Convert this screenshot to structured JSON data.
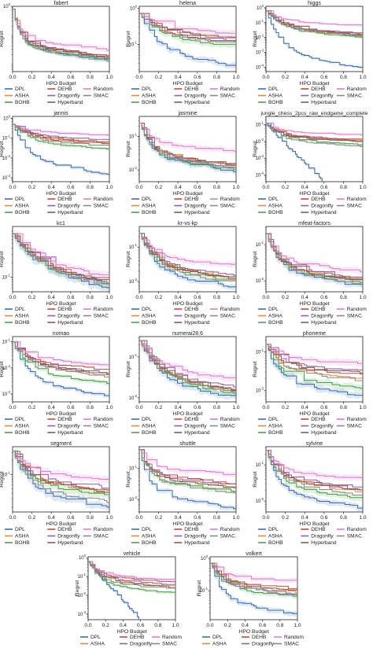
{
  "figure": {
    "colors": {
      "DPL": "#3a6fb5",
      "ASHA": "#e08a3c",
      "BOHB": "#4aa34a",
      "DEHB": "#d2453b",
      "Dragonfly": "#8a5fb0",
      "Hyperband": "#8c5a48",
      "Random": "#e07ccd",
      "SMAC": "#8a8a8a"
    },
    "legend_layout": [
      [
        "DPL",
        "DEHB",
        "Random"
      ],
      [
        "ASHA",
        "Dragonfly",
        "SMAC"
      ],
      [
        "BOHB",
        "Hyperband"
      ]
    ]
  },
  "chart_data": [
    {
      "title": "fabert",
      "type": "line",
      "xlabel": "HPO Budget",
      "ylabel": "Regret",
      "yscale": "log",
      "ylim_exp": [
        -2.3,
        0
      ],
      "ytick_exps": [
        0
      ],
      "xticks": [
        "0.0",
        "0.2",
        "0.4",
        "0.6",
        "0.8",
        "1.0"
      ],
      "final": {
        "DPL": -1.92,
        "ASHA": -1.85,
        "BOHB": -1.9,
        "DEHB": -1.78,
        "Dragonfly": -1.83,
        "Hyperband": -1.8,
        "Random": -1.55,
        "SMAC": -1.95
      },
      "start": -0.1,
      "drop": 0.13
    },
    {
      "title": "helena",
      "type": "line",
      "xlabel": "HPO Budget",
      "ylabel": "Regret",
      "yscale": "log",
      "ylim_exp": [
        -1.75,
        0.05
      ],
      "ytick_exps": [
        0,
        -1
      ],
      "xticks": [
        "0.0",
        "0.2",
        "0.4",
        "0.6",
        "0.8",
        "1.0"
      ],
      "final": {
        "DPL": -1.62,
        "ASHA": -0.85,
        "BOHB": -1.05,
        "DEHB": -0.95,
        "Dragonfly": -0.9,
        "Hyperband": -0.82,
        "Random": -0.7,
        "SMAC": -0.98
      },
      "start": -0.15,
      "drop": 0.3
    },
    {
      "title": "higgs",
      "type": "line",
      "xlabel": "HPO Budget",
      "ylabel": "Regret",
      "yscale": "log",
      "ylim_exp": [
        -4.3,
        0.1
      ],
      "ytick_exps": [
        0,
        -1,
        -2,
        -3,
        -4
      ],
      "xticks": [
        "0.0",
        "0.2",
        "0.4",
        "0.6",
        "0.8",
        "1.0"
      ],
      "final": {
        "DPL": -4.1,
        "ASHA": -1.95,
        "BOHB": -2.0,
        "DEHB": -1.75,
        "Dragonfly": -1.8,
        "Hyperband": -1.85,
        "Random": -1.2,
        "SMAC": -1.9
      },
      "start": -0.2,
      "drop": 0.25
    },
    {
      "title": "jannis",
      "type": "line",
      "xlabel": "HPO Budget",
      "ylabel": "Regret",
      "yscale": "log",
      "ylim_exp": [
        -3.2,
        0.1
      ],
      "ytick_exps": [
        0,
        -1,
        -2,
        -3
      ],
      "xticks": [
        "0.0",
        "0.2",
        "0.4",
        "0.6",
        "0.8",
        "1.0"
      ],
      "final": {
        "DPL": -2.85,
        "ASHA": -1.25,
        "BOHB": -1.55,
        "DEHB": -1.3,
        "Dragonfly": -1.1,
        "Hyperband": -1.2,
        "Random": -0.85,
        "SMAC": -1.4
      },
      "start": -0.3,
      "drop": 0.25
    },
    {
      "title": "jasmine",
      "type": "line",
      "xlabel": "HPO Budget",
      "ylabel": "Regret",
      "yscale": "log",
      "ylim_exp": [
        -2.35,
        -0.4
      ],
      "ytick_exps": [
        -1,
        -2
      ],
      "xticks": [
        "0.0",
        "0.2",
        "0.4",
        "0.6",
        "0.8",
        "1.0"
      ],
      "final": {
        "DPL": -2.05,
        "ASHA": -1.9,
        "BOHB": -2.0,
        "DEHB": -1.88,
        "Dragonfly": -1.95,
        "Hyperband": -1.85,
        "Random": -1.45,
        "SMAC": -1.92
      },
      "start": -0.6,
      "drop": 0.2
    },
    {
      "title": "jungle_chess_2pcs_raw_endgame_complete",
      "type": "line",
      "xlabel": "HPO Budget",
      "ylabel": "Regret",
      "yscale": "log",
      "ylim_exp": [
        -4.4,
        -0.5
      ],
      "ytick_exps": [
        -1,
        -2,
        -3,
        -4
      ],
      "xticks": [
        "0.0",
        "0.2",
        "0.4",
        "0.6",
        "0.8",
        "1.0"
      ],
      "final": {
        "DPL": -4.3,
        "ASHA": -1.95,
        "BOHB": -2.2,
        "DEHB": -1.9,
        "Dragonfly": -2.0,
        "Hyperband": -2.05,
        "Random": -1.6,
        "SMAC": -2.3
      },
      "start": -0.9,
      "drop": 0.2,
      "dpl_end": 0.58
    },
    {
      "title": "kc1",
      "type": "line",
      "xlabel": "HPO Budget",
      "ylabel": "Regret",
      "yscale": "log",
      "ylim_exp": [
        -1.3,
        0.05
      ],
      "ytick_exps": [
        -1
      ],
      "xticks": [
        "0.0",
        "0.2",
        "0.4",
        "0.6",
        "0.8",
        "1.0"
      ],
      "final": {
        "DPL": -1.25,
        "ASHA": -1.15,
        "BOHB": -1.18,
        "DEHB": -1.12,
        "Dragonfly": -1.14,
        "Hyperband": -1.1,
        "Random": -1.0,
        "SMAC": -1.2
      },
      "start": -0.1,
      "drop": 0.45
    },
    {
      "title": "kr-vs-kp",
      "type": "line",
      "xlabel": "HPO Budget",
      "ylabel": "Regret",
      "yscale": "log",
      "ylim_exp": [
        -2.3,
        -0.4
      ],
      "ytick_exps": [
        -1,
        -2
      ],
      "xticks": [
        "0.0",
        "0.2",
        "0.4",
        "0.6",
        "0.8",
        "1.0"
      ],
      "final": {
        "DPL": -2.2,
        "ASHA": -1.9,
        "BOHB": -2.0,
        "DEHB": -1.95,
        "Dragonfly": -1.85,
        "Hyperband": -1.92,
        "Random": -1.55,
        "SMAC": -2.05
      },
      "start": -0.6,
      "drop": 0.25
    },
    {
      "title": "mfeat-factors",
      "type": "line",
      "xlabel": "HPO Budget",
      "ylabel": "Regret",
      "yscale": "log",
      "ylim_exp": [
        -2.3,
        -0.5
      ],
      "ytick_exps": [
        -1,
        -2
      ],
      "xticks": [
        "0.0",
        "0.2",
        "0.4",
        "0.6",
        "0.8",
        "1.0"
      ],
      "final": {
        "DPL": -2.15,
        "ASHA": -2.0,
        "BOHB": -2.05,
        "DEHB": -1.98,
        "Dragonfly": -1.95,
        "Hyperband": -2.02,
        "Random": -1.75,
        "SMAC": -2.1
      },
      "start": -0.7,
      "drop": 0.2
    },
    {
      "title": "nomao",
      "type": "line",
      "xlabel": "HPO Budget",
      "ylabel": "Regret",
      "yscale": "log",
      "ylim_exp": [
        -3.3,
        -0.8
      ],
      "ytick_exps": [
        -1,
        -2,
        -3
      ],
      "xticks": [
        "0.0",
        "0.2",
        "0.4",
        "0.6",
        "0.8",
        "1.0"
      ],
      "final": {
        "DPL": -3.1,
        "ASHA": -2.3,
        "BOHB": -2.6,
        "DEHB": -2.1,
        "Dragonfly": -2.2,
        "Hyperband": -2.25,
        "Random": -1.9,
        "SMAC": -2.35
      },
      "start": -1.0,
      "drop": 0.25
    },
    {
      "title": "numerai28.6",
      "type": "line",
      "xlabel": "HPO Budget",
      "ylabel": "Regret",
      "yscale": "log",
      "ylim_exp": [
        -2.1,
        -0.5
      ],
      "ytick_exps": [
        -1,
        -2
      ],
      "xticks": [
        "0.0",
        "0.2",
        "0.4",
        "0.6",
        "0.8",
        "1.0"
      ],
      "final": {
        "DPL": -2.0,
        "ASHA": -1.85,
        "BOHB": -1.9,
        "DEHB": -1.8,
        "Dragonfly": -1.75,
        "Hyperband": -1.82,
        "Random": -1.55,
        "SMAC": -1.88
      },
      "start": -0.6,
      "drop": 0.3
    },
    {
      "title": "phoneme",
      "type": "line",
      "xlabel": "HPO Budget",
      "ylabel": "Regret",
      "yscale": "log",
      "ylim_exp": [
        -2.3,
        -0.6
      ],
      "ytick_exps": [
        -1,
        -2
      ],
      "xticks": [
        "0.0",
        "0.2",
        "0.4",
        "0.6",
        "0.8",
        "1.0"
      ],
      "final": {
        "DPL": -2.15,
        "ASHA": -1.7,
        "BOHB": -1.95,
        "DEHB": -1.6,
        "Dragonfly": -1.5,
        "Hyperband": -1.55,
        "Random": -1.3,
        "SMAC": -1.75
      },
      "start": -0.8,
      "drop": 0.2
    },
    {
      "title": "segment",
      "type": "line",
      "xlabel": "HPO Budget",
      "ylabel": "Regret",
      "yscale": "log",
      "ylim_exp": [
        -1.8,
        -0.4
      ],
      "ytick_exps": [
        -1
      ],
      "xticks": [
        "0.0",
        "0.2",
        "0.4",
        "0.6",
        "0.8",
        "1.0"
      ],
      "final": {
        "DPL": -1.7,
        "ASHA": -1.4,
        "BOHB": -1.45,
        "DEHB": -1.35,
        "Dragonfly": -1.3,
        "Hyperband": -1.38,
        "Random": -1.1,
        "SMAC": -1.6
      },
      "start": -0.5,
      "drop": 0.25
    },
    {
      "title": "shuttle",
      "type": "line",
      "xlabel": "HPO Budget",
      "ylabel": "Regret",
      "yscale": "log",
      "ylim_exp": [
        -2.4,
        -0.3
      ],
      "ytick_exps": [
        -1,
        -2
      ],
      "xticks": [
        "0.0",
        "0.2",
        "0.4",
        "0.6",
        "0.8",
        "1.0"
      ],
      "final": {
        "DPL": -2.3,
        "ASHA": -1.6,
        "BOHB": -1.75,
        "DEHB": -1.5,
        "Dragonfly": -1.55,
        "Hyperband": -1.65,
        "Random": -1.2,
        "SMAC": -1.8
      },
      "start": -0.4,
      "drop": 0.15
    },
    {
      "title": "sylvine",
      "type": "line",
      "xlabel": "HPO Budget",
      "ylabel": "Regret",
      "yscale": "log",
      "ylim_exp": [
        -2.3,
        -0.5
      ],
      "ytick_exps": [
        -1,
        -2
      ],
      "xticks": [
        "0.0",
        "0.2",
        "0.4",
        "0.6",
        "0.8",
        "1.0"
      ],
      "final": {
        "DPL": -2.2,
        "ASHA": -1.75,
        "BOHB": -1.95,
        "DEHB": -1.7,
        "Dragonfly": -1.65,
        "Hyperband": -1.72,
        "Random": -1.4,
        "SMAC": -1.85
      },
      "start": -0.6,
      "drop": 0.2
    },
    {
      "title": "vehicle",
      "type": "line",
      "xlabel": "HPO Budget",
      "ylabel": "Regret",
      "yscale": "log",
      "ylim_exp": [
        -3.3,
        0.05
      ],
      "ytick_exps": [
        0,
        -1,
        -2,
        -3
      ],
      "xticks": [
        "0.0",
        "0.2",
        "0.4",
        "0.6",
        "0.8",
        "1.0"
      ],
      "final": {
        "DPL": -3.2,
        "ASHA": -1.55,
        "BOHB": -1.9,
        "DEHB": -1.3,
        "Dragonfly": -1.45,
        "Hyperband": -1.6,
        "Random": -1.2,
        "SMAC": -1.7
      },
      "start": -0.2,
      "drop": 0.2,
      "dpl_end": 0.58
    },
    {
      "title": "volkert",
      "type": "line",
      "xlabel": "HPO Budget",
      "ylabel": "Regret",
      "yscale": "log",
      "ylim_exp": [
        -1.9,
        0.05
      ],
      "ytick_exps": [
        0,
        -1
      ],
      "xticks": [
        "0.0",
        "0.2",
        "0.4",
        "0.6",
        "0.8",
        "1.0"
      ],
      "final": {
        "DPL": -1.75,
        "ASHA": -1.05,
        "BOHB": -1.2,
        "DEHB": -0.95,
        "Dragonfly": -1.1,
        "Hyperband": -1.0,
        "Random": -0.7,
        "SMAC": -1.15
      },
      "start": -0.15,
      "drop": 0.2
    }
  ]
}
